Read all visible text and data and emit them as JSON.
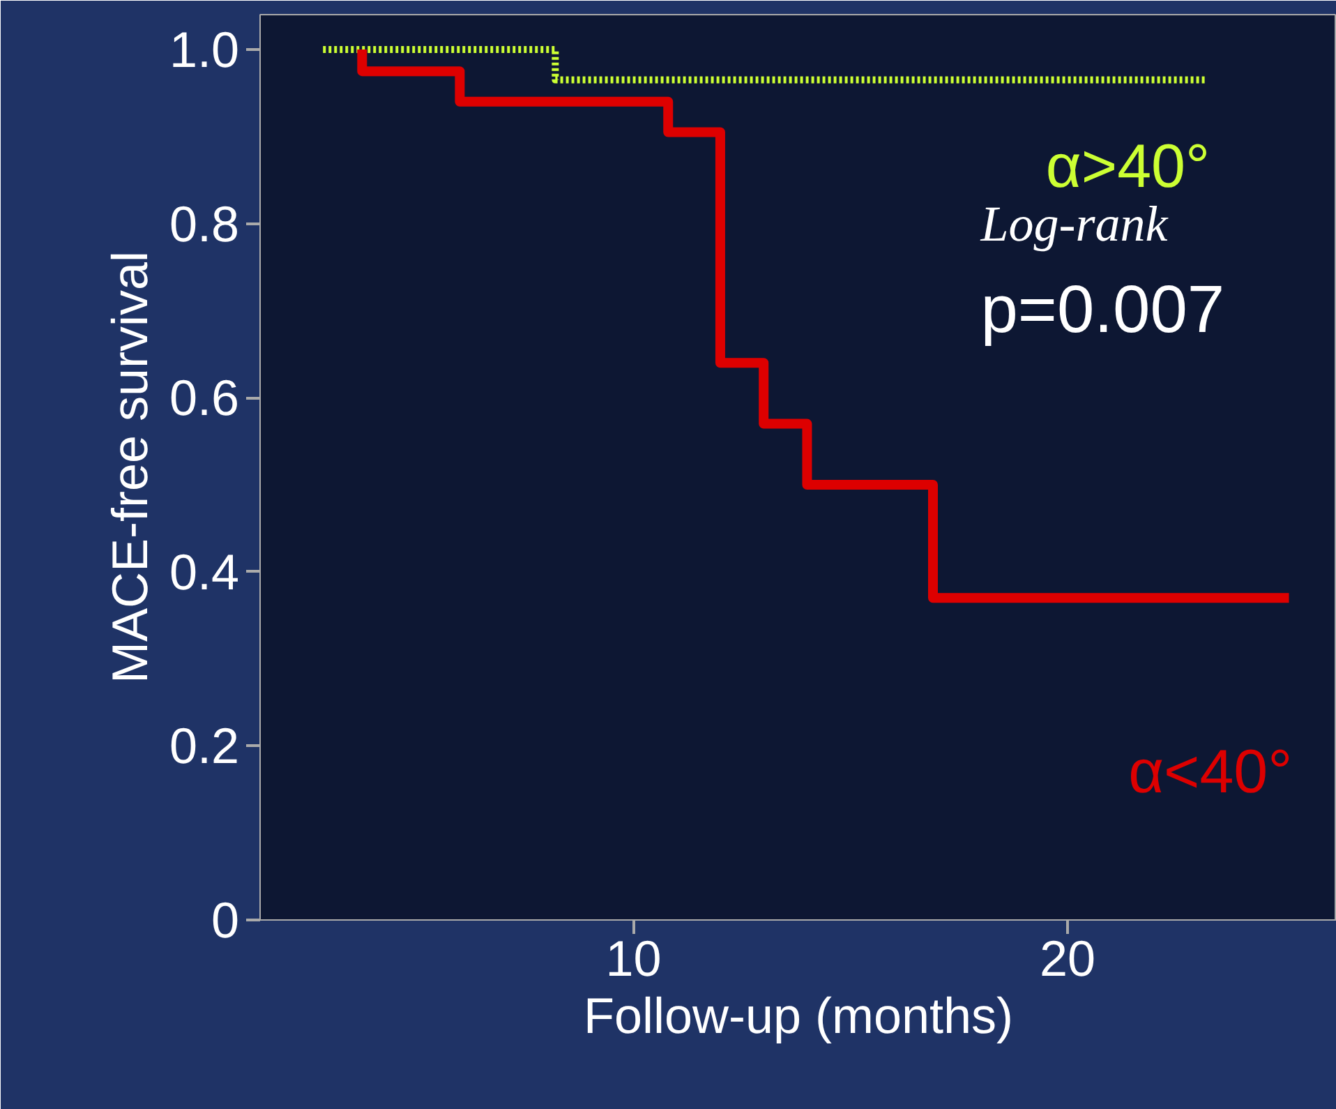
{
  "chart_data": {
    "type": "step",
    "xlabel": "Follow-up (months)",
    "ylabel": "MACE-free survival",
    "series": [
      {
        "name": "α>40°",
        "color": "#ccff33",
        "line_style": "dotted",
        "x": [
          2.85,
          8.2,
          23.2
        ],
        "values": [
          1.0,
          0.965,
          0.965
        ]
      },
      {
        "name": "α<40°",
        "color": "#dd0000",
        "line_style": "solid",
        "x": [
          3.75,
          3.75,
          6.0,
          10.8,
          12.0,
          13.0,
          14.0,
          16.9,
          25.1
        ],
        "values": [
          1.0,
          0.975,
          0.94,
          0.905,
          0.64,
          0.57,
          0.5,
          0.37,
          0.37
        ]
      }
    ],
    "annotations": [
      "Log-rank",
      "p=0.007"
    ],
    "xlim": [
      1.4,
      26.2
    ],
    "ylim": [
      0,
      1.04
    ],
    "xticks": [
      10,
      20
    ],
    "yticks": [
      0,
      0.2,
      0.4,
      0.6,
      0.8,
      {
        "value": 1.0,
        "label": "1.0"
      }
    ],
    "grid": false,
    "legend": false
  }
}
